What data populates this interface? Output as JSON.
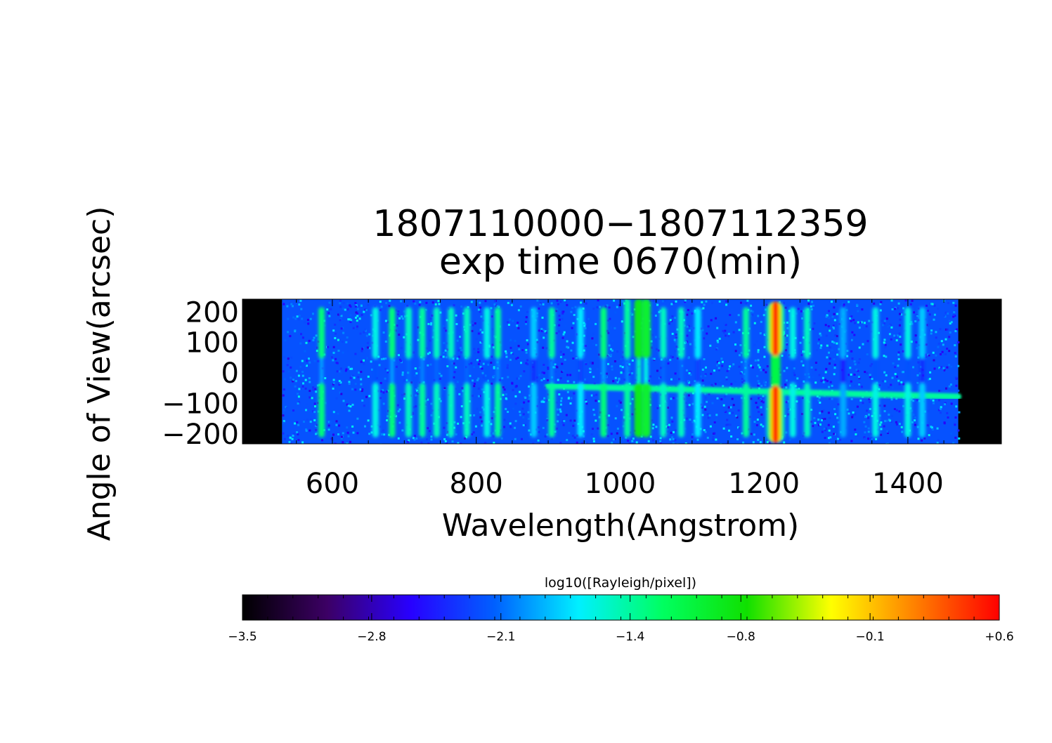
{
  "chart_data": [
    {
      "type": "heatmap",
      "title": "1807110000−1807112359",
      "subtitle": "exp time 0670(min)",
      "xlabel": "Wavelength(Angstrom)",
      "ylabel": "Angle of View(arcsec)",
      "xlim": [
        475,
        1530
      ],
      "ylim": [
        -235,
        240
      ],
      "x_ticks": [
        600,
        800,
        1000,
        1200,
        1400
      ],
      "x_tick_labels": [
        "600",
        "800",
        "1000",
        "1200",
        "1400"
      ],
      "y_ticks": [
        200,
        100,
        0,
        -100,
        -200
      ],
      "y_tick_labels": [
        "200",
        "100",
        "0",
        "−100",
        "−200"
      ],
      "data_extent_x": [
        530,
        1470
      ],
      "background_level": -2.2,
      "slit_gap_y": [
        -35,
        45
      ],
      "limb_trace": {
        "y_start": -45,
        "y_end": -80,
        "from_x": 900,
        "level": -1.4
      },
      "emission_lines": [
        {
          "x": 585,
          "level": -1.3
        },
        {
          "x": 660,
          "level": -1.6
        },
        {
          "x": 683,
          "level": -1.3
        },
        {
          "x": 706,
          "level": -1.5
        },
        {
          "x": 725,
          "level": -1.4
        },
        {
          "x": 745,
          "level": -1.5
        },
        {
          "x": 765,
          "level": -1.5
        },
        {
          "x": 787,
          "level": -1.5
        },
        {
          "x": 815,
          "level": -1.6
        },
        {
          "x": 830,
          "level": -1.4
        },
        {
          "x": 880,
          "level": -1.8
        },
        {
          "x": 905,
          "level": -1.4
        },
        {
          "x": 945,
          "level": -1.7
        },
        {
          "x": 977,
          "level": -1.3
        },
        {
          "x": 1010,
          "level": -1.4
        },
        {
          "x": 1026,
          "level": -0.9
        },
        {
          "x": 1036,
          "level": -1.0
        },
        {
          "x": 1060,
          "level": -1.5
        },
        {
          "x": 1085,
          "level": -1.5
        },
        {
          "x": 1108,
          "level": -1.7
        },
        {
          "x": 1175,
          "level": -1.4
        },
        {
          "x": 1216,
          "level": 0.5
        },
        {
          "x": 1240,
          "level": -1.6
        },
        {
          "x": 1260,
          "level": -1.5
        },
        {
          "x": 1310,
          "level": -1.9
        },
        {
          "x": 1355,
          "level": -1.6
        },
        {
          "x": 1400,
          "level": -1.6
        },
        {
          "x": 1420,
          "level": -1.8
        }
      ]
    },
    {
      "type": "colorbar",
      "label": "log10([Rayleigh/pixel])",
      "range": [
        -3.5,
        0.6
      ],
      "ticks": [
        -3.5,
        -2.8,
        -2.1,
        -1.4,
        -0.8,
        -0.1,
        0.6
      ],
      "tick_labels": [
        "−3.5",
        "−2.8",
        "−2.1",
        "−1.4",
        "−0.8",
        "−0.1",
        "+0.6"
      ],
      "colormap": [
        "#000000",
        "#3c0064",
        "#2800ff",
        "#0060ff",
        "#00f0ff",
        "#00ff60",
        "#10e000",
        "#ffff00",
        "#ff8000",
        "#ff0000"
      ]
    }
  ]
}
